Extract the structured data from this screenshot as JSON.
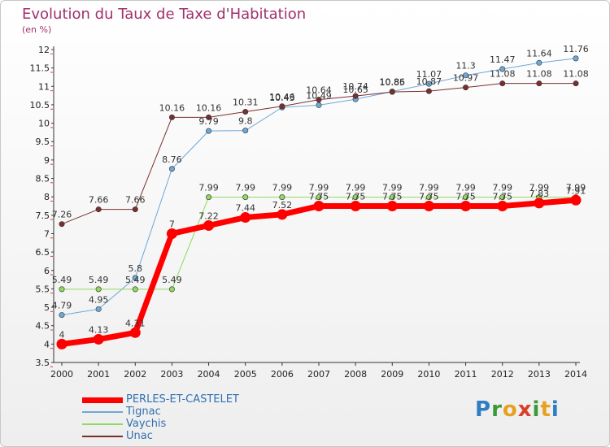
{
  "title": "Evolution du Taux de Taxe d'Habitation",
  "subtitle": "(en %)",
  "logo": {
    "letters": [
      "P",
      "r",
      "o",
      "x",
      "i",
      "t",
      "i"
    ],
    "colors": [
      "#2f7dc3",
      "#3a9a3a",
      "#e8a020",
      "#d8402a",
      "#3a9a3a",
      "#e8a020",
      "#2f7dc3"
    ]
  },
  "chart_data": {
    "type": "line",
    "x": [
      2000,
      2001,
      2002,
      2003,
      2004,
      2005,
      2006,
      2007,
      2008,
      2009,
      2010,
      2011,
      2012,
      2013,
      2014
    ],
    "ylim": [
      3.5,
      12
    ],
    "yticks": [
      3.5,
      4,
      4.5,
      5,
      5.5,
      6,
      6.5,
      7,
      7.5,
      8,
      8.5,
      9,
      9.5,
      10,
      10.5,
      11,
      11.5,
      12
    ],
    "grid": false,
    "legend_position": "bottom-left",
    "series": [
      {
        "name": "PERLES-ET-CASTELET",
        "color": "#ff0000",
        "width": 7,
        "values": [
          4,
          4.13,
          4.31,
          7,
          7.22,
          7.44,
          7.52,
          7.75,
          7.75,
          7.75,
          7.75,
          7.75,
          7.75,
          7.83,
          7.91
        ],
        "labels": [
          "4",
          "4.13",
          "4.31",
          "7",
          "7.22",
          "7.44",
          "7.52",
          "7.75",
          "7.75",
          "7.75",
          "7.75",
          "7.75",
          "7.75",
          "7.83",
          "7.91"
        ]
      },
      {
        "name": "Tignac",
        "color": "#6ea8d8",
        "width": 1,
        "values": [
          4.79,
          4.95,
          5.8,
          8.76,
          9.79,
          9.8,
          10.43,
          10.49,
          10.65,
          10.86,
          11.07,
          11.3,
          11.47,
          11.64,
          11.76
        ],
        "labels": [
          "4.79",
          "4.95",
          "5.8",
          "8.76",
          "9.79",
          "9.8",
          "10.43",
          "10.49",
          "10.65",
          "10.86",
          "11.07",
          "11.3",
          "11.47",
          "11.64",
          "11.76"
        ]
      },
      {
        "name": "Vaychis",
        "color": "#90d860",
        "width": 1,
        "values": [
          5.49,
          5.49,
          5.49,
          5.49,
          7.99,
          7.99,
          7.99,
          7.99,
          7.99,
          7.99,
          7.99,
          7.99,
          7.99,
          7.99,
          7.99
        ],
        "labels": [
          "5.49",
          "5.49",
          "5.49",
          "5.49",
          "7.99",
          "7.99",
          "7.99",
          "7.99",
          "7.99",
          "7.99",
          "7.99",
          "7.99",
          "7.99",
          "7.99",
          "7.99"
        ]
      },
      {
        "name": "Unac",
        "color": "#7a2f2f",
        "width": 1,
        "values": [
          7.26,
          7.66,
          7.66,
          10.16,
          10.16,
          10.31,
          10.46,
          10.64,
          10.74,
          10.85,
          10.87,
          10.97,
          11.08,
          11.08,
          11.08
        ],
        "labels": [
          "7.26",
          "7.66",
          "7.66",
          "10.16",
          "10.16",
          "10.31",
          "10.46",
          "10.64",
          "10.74",
          "10.85",
          "10.87",
          "10.97",
          "11.08",
          "11.08",
          "11.08"
        ]
      }
    ]
  }
}
